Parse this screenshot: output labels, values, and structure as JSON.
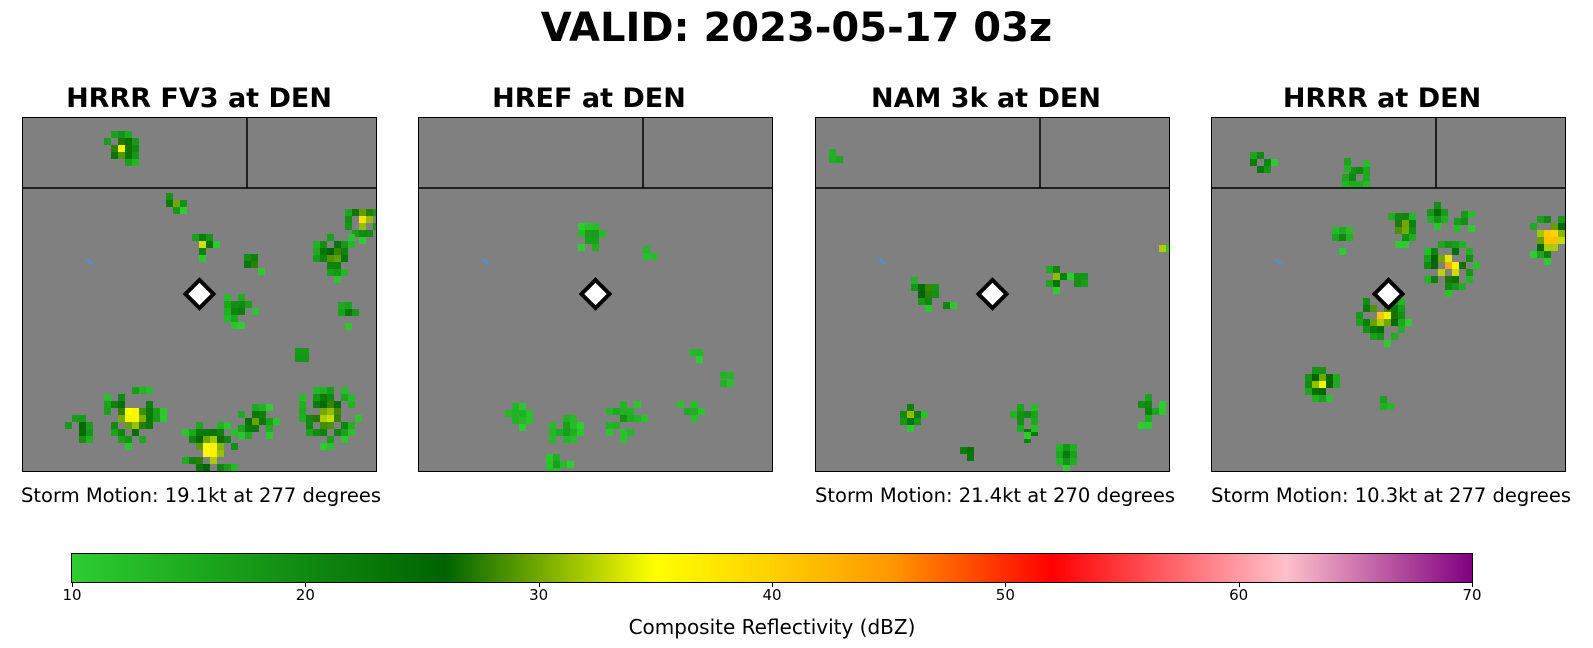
{
  "title": "VALID: 2023-05-17 03z",
  "colors": {
    "background": "#808080",
    "border": "#000000",
    "marker_fill": "#ffffff",
    "marker_stroke": "#000000",
    "motion_vector": "#4a90d9"
  },
  "chart_data": {
    "type": "heatmap",
    "variable": "Composite Reflectivity (dBZ)",
    "station": "DEN",
    "panels": [
      {
        "title": "HRRR FV3 at DEN",
        "storm_motion": "Storm Motion: 19.1kt at 277 degrees",
        "storm_motion_kt": 19.1,
        "storm_motion_deg": 277,
        "cells": [
          {
            "x": 0.27,
            "y": 0.08,
            "r": 0.06,
            "max_dbz": 36
          },
          {
            "x": 0.42,
            "y": 0.23,
            "r": 0.035,
            "max_dbz": 35
          },
          {
            "x": 0.5,
            "y": 0.35,
            "r": 0.04,
            "max_dbz": 33
          },
          {
            "x": 0.64,
            "y": 0.4,
            "r": 0.035,
            "max_dbz": 33
          },
          {
            "x": 0.95,
            "y": 0.28,
            "r": 0.06,
            "max_dbz": 40
          },
          {
            "x": 0.87,
            "y": 0.38,
            "r": 0.07,
            "max_dbz": 32
          },
          {
            "x": 0.6,
            "y": 0.53,
            "r": 0.05,
            "max_dbz": 24
          },
          {
            "x": 0.91,
            "y": 0.54,
            "r": 0.04,
            "max_dbz": 24
          },
          {
            "x": 0.3,
            "y": 0.83,
            "r": 0.09,
            "max_dbz": 40
          },
          {
            "x": 0.52,
            "y": 0.93,
            "r": 0.09,
            "max_dbz": 42
          },
          {
            "x": 0.85,
            "y": 0.83,
            "r": 0.09,
            "max_dbz": 36
          },
          {
            "x": 0.65,
            "y": 0.85,
            "r": 0.06,
            "max_dbz": 30
          },
          {
            "x": 0.15,
            "y": 0.87,
            "r": 0.05,
            "max_dbz": 30
          },
          {
            "x": 0.78,
            "y": 0.66,
            "r": 0.03,
            "max_dbz": 24
          }
        ]
      },
      {
        "title": "HREF at DEN",
        "storm_motion": "",
        "storm_motion_kt": null,
        "storm_motion_deg": null,
        "cells": [
          {
            "x": 0.48,
            "y": 0.33,
            "r": 0.05,
            "max_dbz": 18
          },
          {
            "x": 0.64,
            "y": 0.37,
            "r": 0.025,
            "max_dbz": 16
          },
          {
            "x": 0.4,
            "y": 0.87,
            "r": 0.05,
            "max_dbz": 18
          },
          {
            "x": 0.57,
            "y": 0.84,
            "r": 0.06,
            "max_dbz": 18
          },
          {
            "x": 0.75,
            "y": 0.82,
            "r": 0.04,
            "max_dbz": 16
          },
          {
            "x": 0.77,
            "y": 0.66,
            "r": 0.025,
            "max_dbz": 16
          },
          {
            "x": 0.27,
            "y": 0.83,
            "r": 0.045,
            "max_dbz": 16
          },
          {
            "x": 0.38,
            "y": 0.97,
            "r": 0.04,
            "max_dbz": 16
          },
          {
            "x": 0.86,
            "y": 0.73,
            "r": 0.03,
            "max_dbz": 16
          }
        ]
      },
      {
        "title": "NAM 3k at DEN",
        "storm_motion": "Storm Motion: 21.4kt at 270 degrees",
        "storm_motion_kt": 21.4,
        "storm_motion_deg": 270,
        "cells": [
          {
            "x": 0.3,
            "y": 0.48,
            "r": 0.05,
            "max_dbz": 33
          },
          {
            "x": 0.45,
            "y": 0.48,
            "r": 0.03,
            "max_dbz": 24
          },
          {
            "x": 0.67,
            "y": 0.44,
            "r": 0.04,
            "max_dbz": 33
          },
          {
            "x": 0.74,
            "y": 0.45,
            "r": 0.03,
            "max_dbz": 24
          },
          {
            "x": 0.26,
            "y": 0.83,
            "r": 0.04,
            "max_dbz": 33
          },
          {
            "x": 0.6,
            "y": 0.89,
            "r": 0.03,
            "max_dbz": 33
          },
          {
            "x": 0.42,
            "y": 0.94,
            "r": 0.03,
            "max_dbz": 33
          },
          {
            "x": 0.58,
            "y": 0.84,
            "r": 0.05,
            "max_dbz": 24
          },
          {
            "x": 0.92,
            "y": 0.81,
            "r": 0.05,
            "max_dbz": 24
          },
          {
            "x": 0.97,
            "y": 0.36,
            "r": 0.02,
            "max_dbz": 33
          },
          {
            "x": 0.7,
            "y": 0.94,
            "r": 0.04,
            "max_dbz": 24
          },
          {
            "x": 0.05,
            "y": 0.1,
            "r": 0.03,
            "max_dbz": 18
          },
          {
            "x": 0.36,
            "y": 0.52,
            "r": 0.02,
            "max_dbz": 22
          }
        ]
      },
      {
        "title": "HRRR at DEN",
        "storm_motion": "Storm Motion: 10.3kt at 277 degrees",
        "storm_motion_kt": 10.3,
        "storm_motion_deg": 277,
        "cells": [
          {
            "x": 0.4,
            "y": 0.15,
            "r": 0.05,
            "max_dbz": 24
          },
          {
            "x": 0.13,
            "y": 0.12,
            "r": 0.04,
            "max_dbz": 33
          },
          {
            "x": 0.66,
            "y": 0.41,
            "r": 0.08,
            "max_dbz": 44
          },
          {
            "x": 0.53,
            "y": 0.3,
            "r": 0.05,
            "max_dbz": 36
          },
          {
            "x": 0.47,
            "y": 0.55,
            "r": 0.08,
            "max_dbz": 40
          },
          {
            "x": 0.95,
            "y": 0.33,
            "r": 0.07,
            "max_dbz": 48
          },
          {
            "x": 0.3,
            "y": 0.74,
            "r": 0.055,
            "max_dbz": 38
          },
          {
            "x": 0.48,
            "y": 0.79,
            "r": 0.025,
            "max_dbz": 20
          },
          {
            "x": 0.63,
            "y": 0.26,
            "r": 0.04,
            "max_dbz": 26
          },
          {
            "x": 0.36,
            "y": 0.33,
            "r": 0.04,
            "max_dbz": 20
          },
          {
            "x": 0.36,
            "y": 0.12,
            "r": 0.025,
            "max_dbz": 24
          },
          {
            "x": 0.7,
            "y": 0.28,
            "r": 0.035,
            "max_dbz": 22
          }
        ]
      }
    ],
    "colorbar": {
      "label": "Composite Reflectivity (dBZ)",
      "range": [
        10,
        70
      ],
      "ticks": [
        "10",
        "20",
        "30",
        "40",
        "50",
        "60",
        "70"
      ],
      "stops": [
        {
          "value": 10,
          "color": "#2ecc31"
        },
        {
          "value": 20,
          "color": "#108a10"
        },
        {
          "value": 26,
          "color": "#006400"
        },
        {
          "value": 35,
          "color": "#ffff00"
        },
        {
          "value": 40,
          "color": "#ffd000"
        },
        {
          "value": 45,
          "color": "#ff9900"
        },
        {
          "value": 52,
          "color": "#ff0000"
        },
        {
          "value": 62,
          "color": "#ffc0cb"
        },
        {
          "value": 70,
          "color": "#800080"
        }
      ]
    }
  }
}
